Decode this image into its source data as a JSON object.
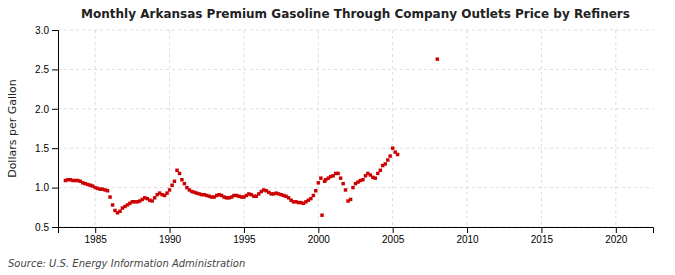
{
  "chart_data": {
    "type": "scatter",
    "title": "Monthly Arkansas Premium Gasoline Through Company Outlets Price by Refiners",
    "ylabel": "Dollars per Gallon",
    "annotations": [
      "Source: U.S. Energy Information Administration"
    ],
    "color": "#cc0000",
    "marker": "square",
    "grid": true,
    "xlim": [
      1982.5,
      2022.5
    ],
    "ylim": [
      0.5,
      3.0
    ],
    "xticks": [
      1985,
      1990,
      1995,
      2000,
      2005,
      2010,
      2015,
      2020
    ],
    "yticks": [
      0.5,
      {
        "value": 1.0,
        "label": "1.0"
      },
      1.5,
      {
        "value": 2.0,
        "label": "2.0"
      },
      2.5,
      {
        "value": 3.0,
        "label": "3.0"
      }
    ],
    "x": [
      1983.0,
      1983.17,
      1983.33,
      1983.5,
      1983.67,
      1983.83,
      1984.0,
      1984.17,
      1984.33,
      1984.5,
      1984.67,
      1984.83,
      1985.0,
      1985.17,
      1985.33,
      1985.5,
      1985.67,
      1985.83,
      1986.0,
      1986.17,
      1986.33,
      1986.5,
      1986.67,
      1986.83,
      1987.0,
      1987.17,
      1987.33,
      1987.5,
      1987.67,
      1987.83,
      1988.0,
      1988.17,
      1988.33,
      1988.5,
      1988.67,
      1988.83,
      1989.0,
      1989.17,
      1989.33,
      1989.5,
      1989.67,
      1989.83,
      1990.0,
      1990.17,
      1990.33,
      1990.5,
      1990.67,
      1990.83,
      1991.0,
      1991.17,
      1991.33,
      1991.5,
      1991.67,
      1991.83,
      1992.0,
      1992.17,
      1992.33,
      1992.5,
      1992.67,
      1992.83,
      1993.0,
      1993.17,
      1993.33,
      1993.5,
      1993.67,
      1993.83,
      1994.0,
      1994.17,
      1994.33,
      1994.5,
      1994.67,
      1994.83,
      1995.0,
      1995.17,
      1995.33,
      1995.5,
      1995.67,
      1995.83,
      1996.0,
      1996.17,
      1996.33,
      1996.5,
      1996.67,
      1996.83,
      1997.0,
      1997.17,
      1997.33,
      1997.5,
      1997.67,
      1997.83,
      1998.0,
      1998.17,
      1998.33,
      1998.5,
      1998.67,
      1998.83,
      1999.0,
      1999.17,
      1999.33,
      1999.5,
      1999.67,
      1999.83,
      2000.0,
      2000.17,
      2000.25,
      2000.42,
      2000.5,
      2000.67,
      2000.83,
      2001.0,
      2001.17,
      2001.33,
      2001.5,
      2001.67,
      2001.83,
      2002.0,
      2002.17,
      2002.33,
      2002.5,
      2002.67,
      2002.83,
      2003.0,
      2003.17,
      2003.33,
      2003.5,
      2003.67,
      2003.83,
      2004.0,
      2004.17,
      2004.33,
      2004.5,
      2004.67,
      2004.83,
      2005.0,
      2005.17,
      2005.33,
      2008.0
    ],
    "values": [
      1.09,
      1.1,
      1.1,
      1.09,
      1.09,
      1.09,
      1.08,
      1.06,
      1.05,
      1.04,
      1.03,
      1.02,
      1.0,
      0.99,
      0.98,
      0.98,
      0.97,
      0.96,
      0.88,
      0.78,
      0.71,
      0.68,
      0.7,
      0.74,
      0.76,
      0.78,
      0.8,
      0.82,
      0.82,
      0.82,
      0.83,
      0.85,
      0.87,
      0.86,
      0.84,
      0.83,
      0.87,
      0.91,
      0.93,
      0.91,
      0.9,
      0.93,
      0.97,
      1.03,
      1.08,
      1.22,
      1.18,
      1.1,
      1.05,
      1.0,
      0.97,
      0.95,
      0.94,
      0.93,
      0.92,
      0.91,
      0.91,
      0.9,
      0.89,
      0.88,
      0.88,
      0.9,
      0.91,
      0.9,
      0.88,
      0.87,
      0.87,
      0.88,
      0.9,
      0.9,
      0.89,
      0.88,
      0.88,
      0.9,
      0.92,
      0.91,
      0.89,
      0.89,
      0.92,
      0.95,
      0.97,
      0.96,
      0.94,
      0.92,
      0.92,
      0.93,
      0.92,
      0.91,
      0.9,
      0.89,
      0.87,
      0.84,
      0.82,
      0.82,
      0.81,
      0.81,
      0.8,
      0.82,
      0.84,
      0.86,
      0.9,
      0.96,
      1.06,
      1.12,
      0.65,
      1.08,
      1.1,
      1.12,
      1.14,
      1.15,
      1.18,
      1.18,
      1.12,
      1.05,
      0.97,
      0.83,
      0.85,
      1.0,
      1.05,
      1.07,
      1.09,
      1.1,
      1.15,
      1.18,
      1.16,
      1.13,
      1.12,
      1.18,
      1.22,
      1.28,
      1.3,
      1.35,
      1.4,
      1.5,
      1.45,
      1.42,
      2.63
    ]
  }
}
